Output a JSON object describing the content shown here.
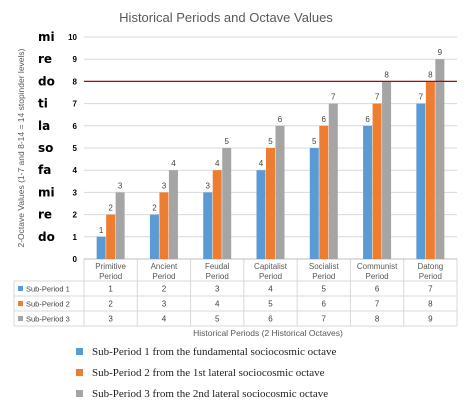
{
  "chart_data": {
    "type": "bar",
    "title": "Historical Periods and Octave Values",
    "ylabel": "2-Octave Values (1-7 and 8-14 = 14 stopinder levels)",
    "xlabel": "Historical Periods (2 Historical Octaves)",
    "ylim": [
      0,
      10
    ],
    "yticks": [
      "0",
      "1",
      "2",
      "3",
      "4",
      "5",
      "6",
      "7",
      "8",
      "9",
      "10"
    ],
    "solfege": [
      "do",
      "re",
      "mi",
      "fa",
      "so",
      "la",
      "ti",
      "do",
      "re",
      "mi"
    ],
    "reference_line": 8,
    "categories": [
      [
        "Primitive",
        "Period"
      ],
      [
        "Ancient",
        "Period"
      ],
      [
        "Feudal",
        "Period"
      ],
      [
        "Capitalist",
        "Period"
      ],
      [
        "Socialist",
        "Period"
      ],
      [
        "Communist",
        "Period"
      ],
      [
        "Datong",
        "Period"
      ]
    ],
    "series": [
      {
        "name": "Sub-Period 1",
        "color": "#5b9bd5",
        "values": [
          1,
          2,
          3,
          4,
          5,
          6,
          7
        ]
      },
      {
        "name": "Sub-Period 2",
        "color": "#ed7d31",
        "values": [
          2,
          3,
          4,
          5,
          6,
          7,
          8
        ]
      },
      {
        "name": "Sub-Period 3",
        "color": "#a5a5a5",
        "values": [
          3,
          4,
          5,
          6,
          7,
          8,
          9
        ]
      }
    ],
    "grid": true,
    "legend_position": "bottom",
    "legend": [
      "Sub-Period 1 from the fundamental sociocosmic octave",
      "Sub-Period 2 from the 1st lateral sociocosmic octave",
      "Sub-Period 3 from the 2nd lateral sociocosmic octave"
    ],
    "reference_line_color": "#c00000",
    "grid_color": "#d9d9d9"
  }
}
